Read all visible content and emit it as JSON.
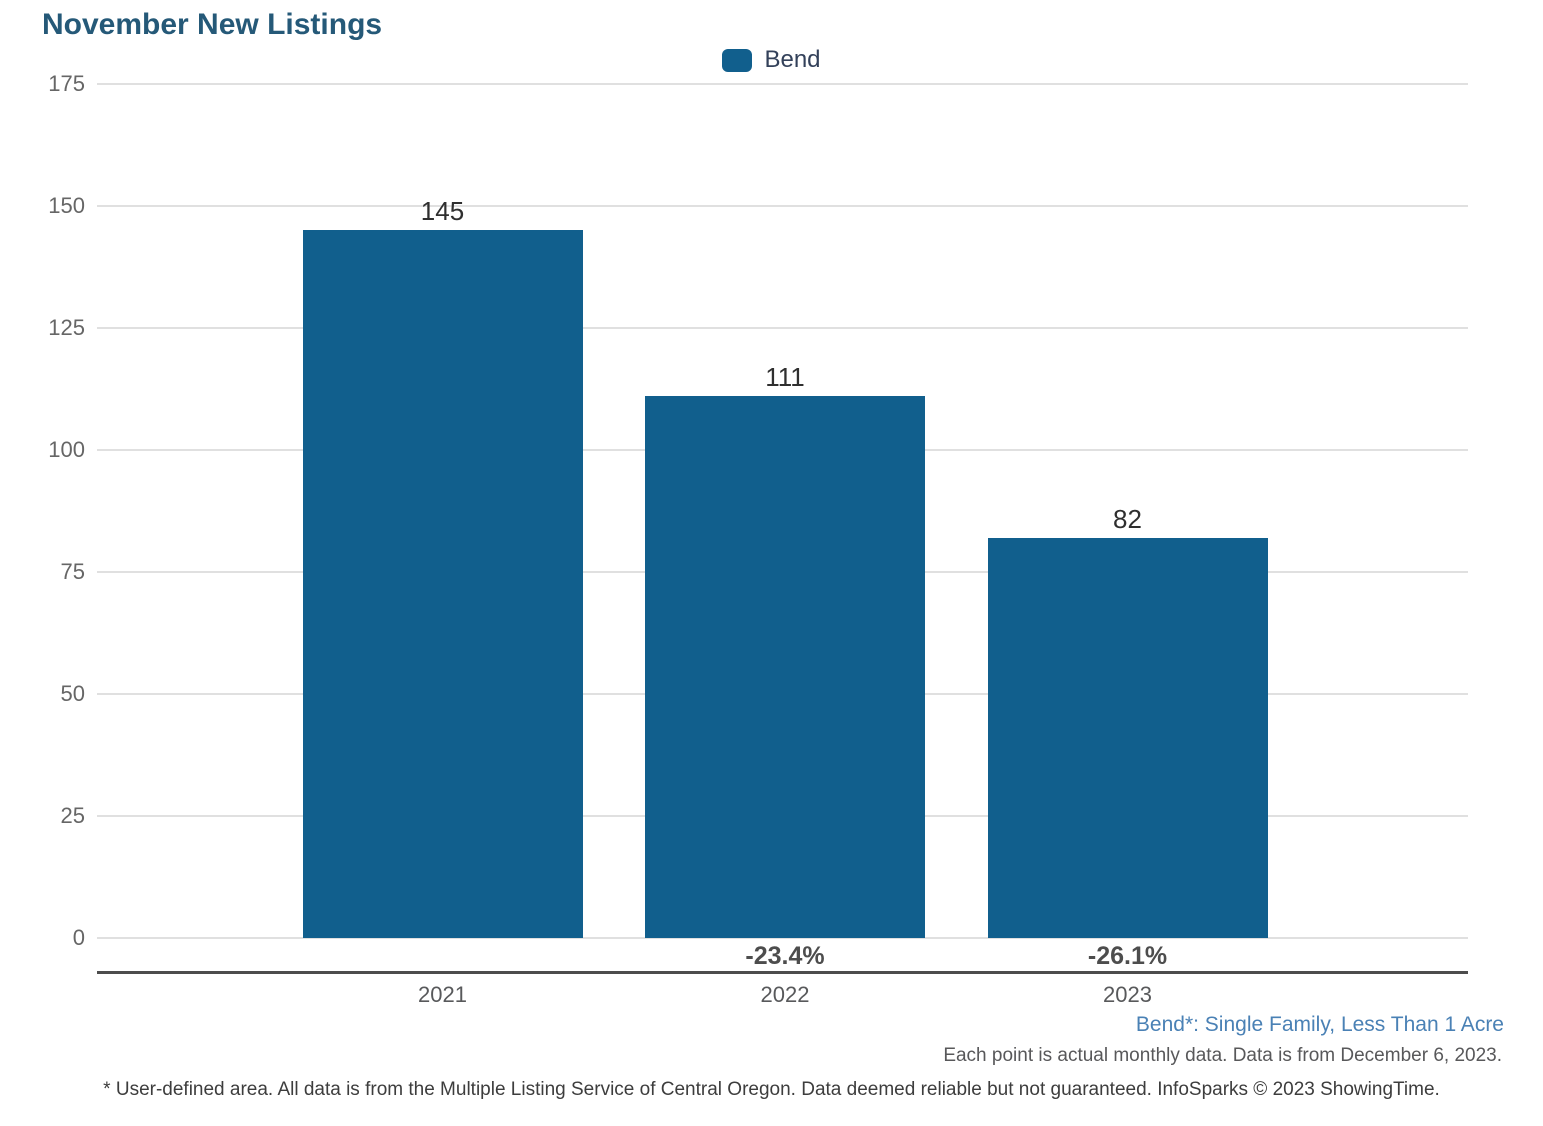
{
  "page": {
    "title": "November New Listings"
  },
  "legend": {
    "items": [
      {
        "label": "Bend",
        "color": "#115f8d"
      }
    ]
  },
  "chart_data": {
    "type": "bar",
    "title": "November New Listings",
    "categories": [
      "2021",
      "2022",
      "2023"
    ],
    "series": [
      {
        "name": "Bend",
        "values": [
          145,
          111,
          82
        ]
      }
    ],
    "value_labels": [
      "145",
      "111",
      "82"
    ],
    "change_labels": [
      "",
      "-23.4%",
      "-26.1%"
    ],
    "xlabel": "",
    "ylabel": "",
    "ylim": [
      0,
      175
    ],
    "yticks": [
      175,
      150,
      125,
      100,
      75,
      50,
      25,
      0
    ],
    "grid": true,
    "legend_position": "top-center",
    "bar_color": "#115f8d"
  },
  "footer": {
    "series_definition": "Bend*: Single Family, Less Than 1 Acre",
    "data_note": "Each point is actual monthly data. Data is from December 6, 2023.",
    "disclaimer": "* User-defined area. All data is from the Multiple Listing Service of Central Oregon. Data deemed reliable but not guaranteed. InfoSparks © 2023 ShowingTime."
  },
  "colors": {
    "bar": "#115f8d",
    "title": "#255978",
    "axis_line": "#4d4d4d",
    "gridline": "#e0e0e0",
    "tick_text": "#666666",
    "footer_link": "#4a81b5"
  }
}
